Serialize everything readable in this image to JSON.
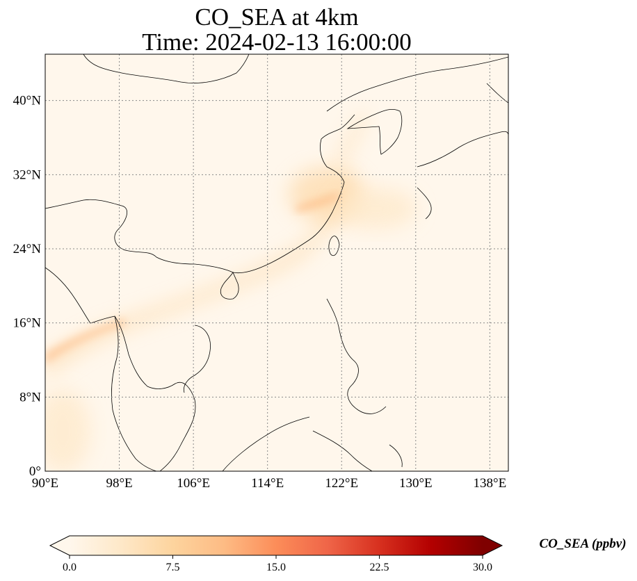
{
  "title": {
    "line1": "CO_SEA at 4km",
    "line2": "Time: 2024-02-13 16:00:00"
  },
  "map": {
    "projection": "PlateCarree",
    "lon_range": [
      90,
      140
    ],
    "lat_range": [
      0,
      45
    ],
    "gridlines": "dotted",
    "lon_ticks": [
      {
        "value": 90,
        "label": "90°E"
      },
      {
        "value": 98,
        "label": "98°E"
      },
      {
        "value": 106,
        "label": "106°E"
      },
      {
        "value": 114,
        "label": "114°E"
      },
      {
        "value": 122,
        "label": "122°E"
      },
      {
        "value": 130,
        "label": "130°E"
      },
      {
        "value": 138,
        "label": "138°E"
      }
    ],
    "lat_ticks": [
      {
        "value": 0,
        "label": "0°"
      },
      {
        "value": 8,
        "label": "8°N"
      },
      {
        "value": 16,
        "label": "16°N"
      },
      {
        "value": 24,
        "label": "24°N"
      },
      {
        "value": 32,
        "label": "32°N"
      },
      {
        "value": 40,
        "label": "40°N"
      }
    ],
    "field_description_visible": false
  },
  "colorbar": {
    "label": "CO_SEA (ppbv)",
    "colormap": "OrRd",
    "range": [
      0,
      30
    ],
    "extend": "both",
    "ticks": [
      {
        "value": 0,
        "label": "0.0"
      },
      {
        "value": 7.5,
        "label": "7.5"
      },
      {
        "value": 15,
        "label": "15.0"
      },
      {
        "value": 22.5,
        "label": "22.5"
      },
      {
        "value": 30,
        "label": "30.0"
      }
    ],
    "colors": [
      "#fff7ec",
      "#fee8c8",
      "#fdd49e",
      "#fdbb84",
      "#fc8d59",
      "#ef6548",
      "#d7301f",
      "#b30000",
      "#7f0000"
    ]
  }
}
